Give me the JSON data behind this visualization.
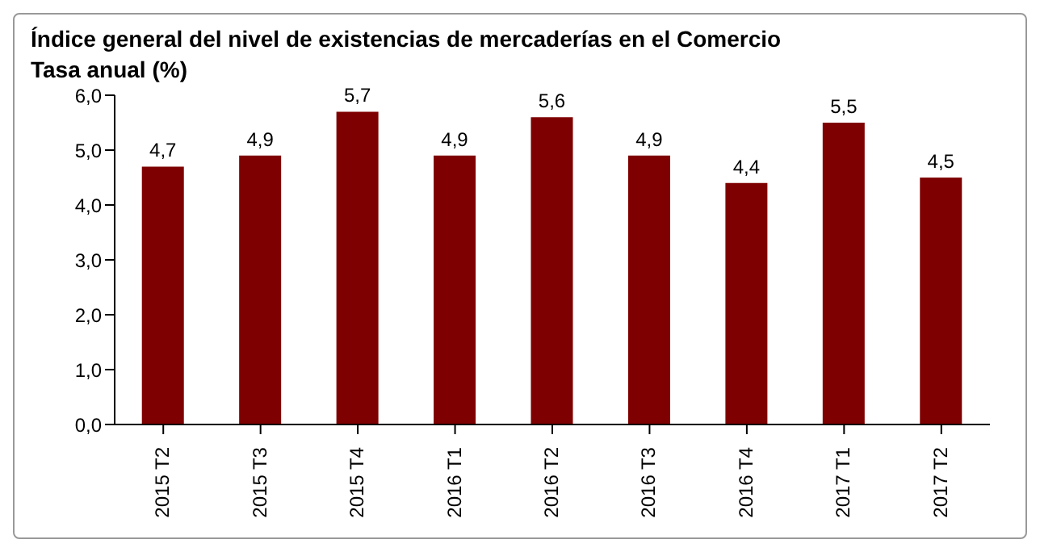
{
  "chart_data": {
    "type": "bar",
    "title": "Índice general del nivel de existencias de mercaderías en el Comercio",
    "subtitle": "Tasa anual (%)",
    "categories": [
      "2015 T2",
      "2015 T3",
      "2015 T4",
      "2016 T1",
      "2016 T2",
      "2016 T3",
      "2016 T4",
      "2017 T1",
      "2017 T2"
    ],
    "values": [
      4.7,
      4.9,
      5.7,
      4.9,
      5.6,
      4.9,
      4.4,
      5.5,
      4.5
    ],
    "value_labels": [
      "4,7",
      "4,9",
      "5,7",
      "4,9",
      "5,6",
      "4,9",
      "4,4",
      "5,5",
      "4,5"
    ],
    "color": "#7f0000",
    "ylim": [
      0,
      6
    ],
    "yticks": [
      {
        "value": 0,
        "label": "0,0"
      },
      {
        "value": 1,
        "label": "1,0"
      },
      {
        "value": 2,
        "label": "2,0"
      },
      {
        "value": 3,
        "label": "3,0"
      },
      {
        "value": 4,
        "label": "4,0"
      },
      {
        "value": 5,
        "label": "5,0"
      },
      {
        "value": 6,
        "label": "6,0"
      }
    ],
    "grid": false,
    "legend": false
  }
}
